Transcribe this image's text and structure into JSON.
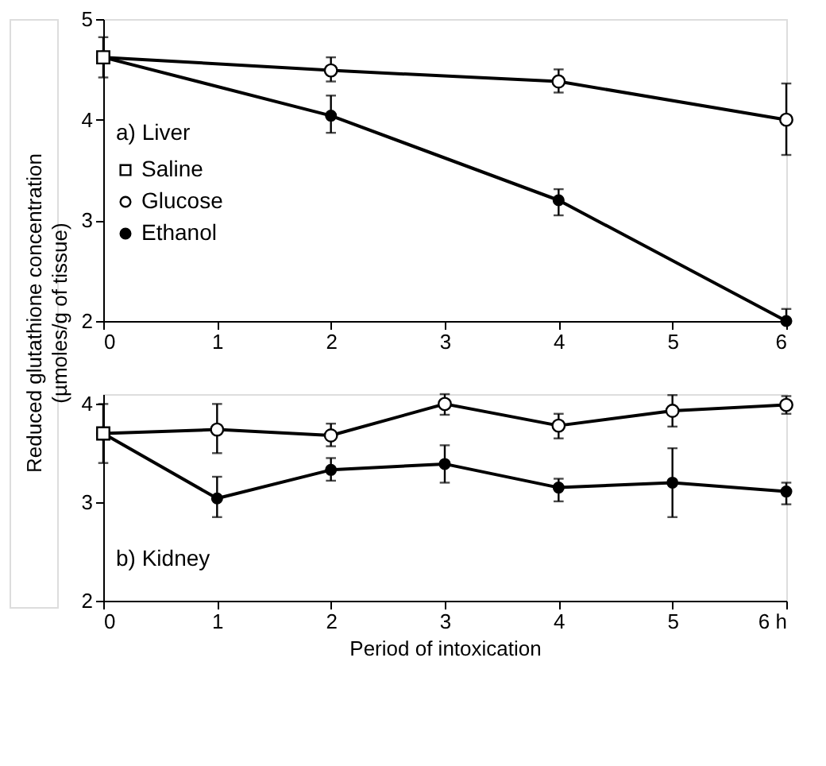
{
  "chart_data": [
    {
      "type": "line",
      "title": "a) Liver",
      "ylabel": "Reduced glutathione concentration\n(µmoles/g of tissue)",
      "xlim": [
        0,
        6
      ],
      "ylim": [
        2,
        5
      ],
      "xticks": [
        0,
        1,
        2,
        3,
        4,
        5,
        6
      ],
      "yticks": [
        2,
        3,
        4,
        5
      ],
      "legend": "left",
      "line_style": "solid",
      "series": [
        {
          "name": "Saline",
          "marker": "square",
          "color": "#ffffff",
          "x": [
            0
          ],
          "values": [
            4.62
          ],
          "errors": [
            [
              4.42,
              4.82
            ]
          ]
        },
        {
          "name": "Glucose",
          "marker": "circle",
          "color": "#ffffff",
          "x": [
            0,
            2,
            4,
            6
          ],
          "values": [
            4.62,
            4.49,
            4.38,
            4.0
          ],
          "errors": [
            null,
            [
              4.38,
              4.62
            ],
            [
              4.27,
              4.5
            ],
            [
              3.65,
              4.36
            ]
          ]
        },
        {
          "name": "Ethanol",
          "marker": "circle",
          "color": "#000000",
          "x": [
            0,
            2,
            4,
            6
          ],
          "values": [
            4.62,
            4.04,
            3.2,
            2.0
          ],
          "errors": [
            null,
            [
              3.87,
              4.24
            ],
            [
              3.05,
              3.31
            ],
            [
              2.0,
              2.12
            ]
          ]
        }
      ]
    },
    {
      "type": "line",
      "title": "b) Kidney",
      "xlabel": "Period of intoxication",
      "xlim": [
        0,
        6
      ],
      "ylim": [
        2,
        4.1
      ],
      "xticks": [
        0,
        1,
        2,
        3,
        4,
        5,
        {
          "value": 6,
          "label": "6 h"
        }
      ],
      "yticks": [
        2,
        3,
        4
      ],
      "line_style": "solid",
      "series": [
        {
          "marker": "square",
          "color": "#ffffff",
          "x": [
            0
          ],
          "values": [
            3.7
          ],
          "errors": [
            [
              3.4,
              4.0
            ]
          ]
        },
        {
          "marker": "circle",
          "color": "#ffffff",
          "x": [
            0,
            1,
            2,
            3,
            4,
            5,
            6
          ],
          "values": [
            3.7,
            3.74,
            3.68,
            4.0,
            3.78,
            3.93,
            3.99
          ],
          "errors": [
            null,
            [
              3.5,
              4.0
            ],
            [
              3.57,
              3.8
            ],
            [
              3.89,
              4.1
            ],
            [
              3.65,
              3.9
            ],
            [
              3.77,
              4.09
            ],
            [
              3.9,
              4.08
            ]
          ]
        },
        {
          "marker": "circle",
          "color": "#000000",
          "x": [
            0,
            1,
            2,
            3,
            4,
            5,
            6
          ],
          "values": [
            3.7,
            3.04,
            3.33,
            3.39,
            3.15,
            3.2,
            3.11
          ],
          "errors": [
            null,
            [
              2.85,
              3.26
            ],
            [
              3.22,
              3.45
            ],
            [
              3.2,
              3.58
            ],
            [
              3.01,
              3.24
            ],
            [
              2.85,
              3.55
            ],
            [
              2.98,
              3.2
            ]
          ]
        }
      ]
    }
  ]
}
